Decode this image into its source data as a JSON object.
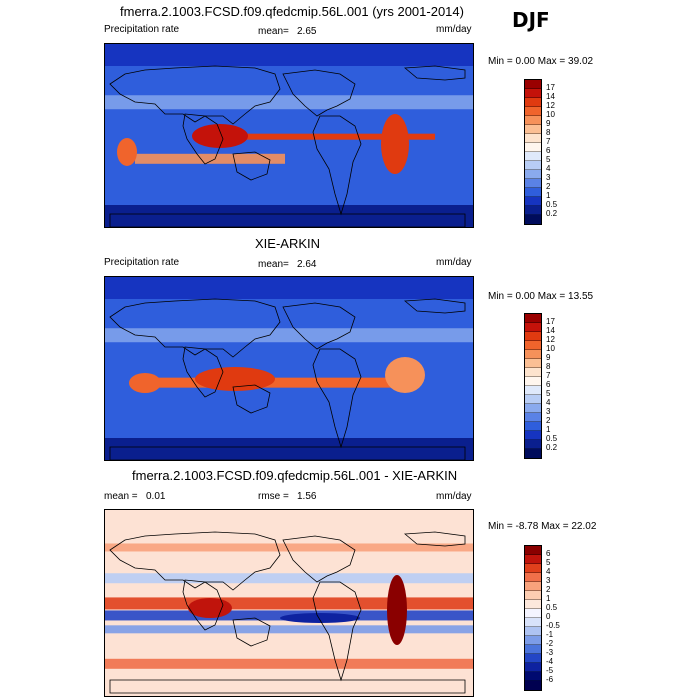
{
  "season": "DJF",
  "panels": [
    {
      "title": "fmerra.2.1003.FCSD.f09.qfedcmip.56L.001 (yrs 2001-2014)",
      "left_label": "Precipitation rate",
      "mean_label": "mean=",
      "mean_value": "2.65",
      "units": "mm/day",
      "minmax": "Min =   0.00 Max =  39.02",
      "kind": "model",
      "colorbar_labels": [
        "17",
        "14",
        "12",
        "10",
        "9",
        "8",
        "7",
        "6",
        "5",
        "4",
        "3",
        "2",
        "1",
        "0.5",
        "0.2"
      ]
    },
    {
      "title": "XIE-ARKIN",
      "left_label": "Precipitation rate",
      "mean_label": "mean=",
      "mean_value": "2.64",
      "units": "mm/day",
      "minmax": "Min =   0.00 Max =  13.55",
      "kind": "obs",
      "colorbar_labels": [
        "17",
        "14",
        "12",
        "10",
        "9",
        "8",
        "7",
        "6",
        "5",
        "4",
        "3",
        "2",
        "1",
        "0.5",
        "0.2"
      ]
    },
    {
      "title": "fmerra.2.1003.FCSD.f09.qfedcmip.56L.001 - XIE-ARKIN",
      "left_label": "mean =",
      "left_value": "0.01",
      "rmse_label": "rmse =",
      "rmse_value": "1.56",
      "units": "mm/day",
      "minmax": "Min =  -8.78 Max =  22.02",
      "kind": "diff",
      "colorbar_labels": [
        "6",
        "5",
        "4",
        "3",
        "2",
        "1",
        "0.5",
        "0",
        "-0.5",
        "-1",
        "-2",
        "-3",
        "-4",
        "-5",
        "-6"
      ]
    }
  ],
  "colors": {
    "precip_scale": [
      "#9a0000",
      "#c4120a",
      "#e03a10",
      "#f0642c",
      "#f6915a",
      "#fbbf94",
      "#fde3cd",
      "#fff6ee",
      "#dfe9fb",
      "#b8cdf5",
      "#8aaaee",
      "#5a82e6",
      "#2f5edc",
      "#1634c0",
      "#0a1f8e",
      "#000c5c"
    ],
    "diff_scale": [
      "#8a0000",
      "#c0140c",
      "#e0401c",
      "#f0704a",
      "#f8a27c",
      "#fccdb2",
      "#fde8dc",
      "#f4f4ff",
      "#d8e2fa",
      "#aec3f2",
      "#7c9ce8",
      "#4b74dc",
      "#2346c6",
      "#0e22a0",
      "#000a70",
      "#000050"
    ]
  }
}
